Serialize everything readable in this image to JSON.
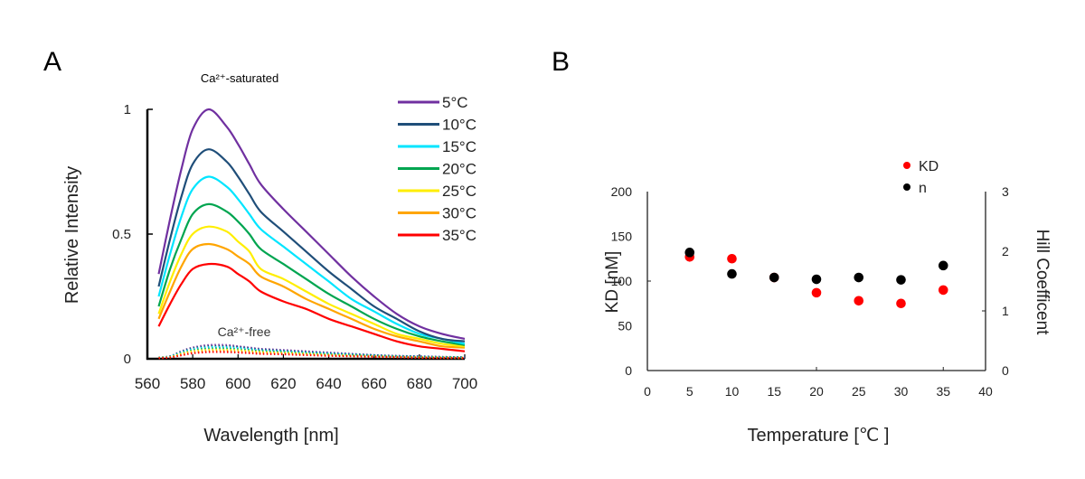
{
  "chart_data": [
    {
      "panel_label": "A",
      "type": "line",
      "title": "Ca²⁺-saturated",
      "annotation": "Ca²⁺-free",
      "xlabel": "Wavelength [nm]",
      "ylabel": "Relative Intensity",
      "xlim": [
        560,
        700
      ],
      "ylim": [
        0,
        1
      ],
      "xticks": [
        "560",
        "580",
        "600",
        "620",
        "640",
        "660",
        "680",
        "700"
      ],
      "yticks": [
        "0",
        "0.5",
        "1"
      ],
      "ytick_values": [
        0,
        0.5,
        1
      ],
      "grid": false,
      "legend_position": "top-right",
      "x": [
        565,
        570,
        575,
        580,
        587,
        595,
        600,
        605,
        610,
        620,
        630,
        640,
        650,
        660,
        670,
        680,
        690,
        700
      ],
      "series": [
        {
          "name": "5°C",
          "color": "#7030a0",
          "style": "solid",
          "values": [
            0.34,
            0.56,
            0.76,
            0.92,
            1.0,
            0.93,
            0.86,
            0.78,
            0.7,
            0.6,
            0.51,
            0.42,
            0.33,
            0.25,
            0.18,
            0.13,
            0.1,
            0.08
          ]
        },
        {
          "name": "10°C",
          "color": "#1f4e79",
          "style": "solid",
          "values": [
            0.29,
            0.48,
            0.65,
            0.78,
            0.84,
            0.79,
            0.73,
            0.66,
            0.59,
            0.51,
            0.43,
            0.35,
            0.28,
            0.21,
            0.16,
            0.11,
            0.08,
            0.07
          ]
        },
        {
          "name": "15°C",
          "color": "#00e5ff",
          "style": "solid",
          "values": [
            0.25,
            0.42,
            0.57,
            0.68,
            0.73,
            0.69,
            0.64,
            0.58,
            0.52,
            0.45,
            0.38,
            0.31,
            0.24,
            0.19,
            0.14,
            0.1,
            0.08,
            0.06
          ]
        },
        {
          "name": "20°C",
          "color": "#00a550",
          "style": "solid",
          "values": [
            0.21,
            0.36,
            0.48,
            0.58,
            0.62,
            0.59,
            0.55,
            0.5,
            0.44,
            0.38,
            0.32,
            0.26,
            0.21,
            0.16,
            0.12,
            0.09,
            0.07,
            0.055
          ]
        },
        {
          "name": "25°C",
          "color": "#ffee00",
          "style": "solid",
          "values": [
            0.18,
            0.31,
            0.42,
            0.5,
            0.53,
            0.51,
            0.47,
            0.43,
            0.36,
            0.32,
            0.27,
            0.22,
            0.18,
            0.14,
            0.1,
            0.08,
            0.06,
            0.05
          ]
        },
        {
          "name": "30°C",
          "color": "#ffa500",
          "style": "solid",
          "values": [
            0.16,
            0.27,
            0.37,
            0.44,
            0.46,
            0.44,
            0.41,
            0.38,
            0.33,
            0.29,
            0.24,
            0.2,
            0.16,
            0.12,
            0.09,
            0.07,
            0.05,
            0.045
          ]
        },
        {
          "name": "35°C",
          "color": "#ff0000",
          "style": "solid",
          "values": [
            0.13,
            0.22,
            0.3,
            0.36,
            0.38,
            0.37,
            0.34,
            0.31,
            0.27,
            0.23,
            0.2,
            0.16,
            0.13,
            0.1,
            0.07,
            0.05,
            0.04,
            0.03
          ]
        }
      ],
      "ca_free_series": [
        {
          "name": "5°C",
          "color": "#7030a0",
          "style": "dotted",
          "values": [
            0.005,
            0.01,
            0.03,
            0.045,
            0.055,
            0.055,
            0.05,
            0.045,
            0.04,
            0.035,
            0.03,
            0.025,
            0.02,
            0.015,
            0.012,
            0.01,
            0.008,
            0.006
          ]
        },
        {
          "name": "10°C",
          "color": "#1f4e79",
          "style": "dotted",
          "values": [
            0.005,
            0.01,
            0.028,
            0.042,
            0.05,
            0.05,
            0.047,
            0.042,
            0.037,
            0.032,
            0.027,
            0.022,
            0.018,
            0.014,
            0.011,
            0.009,
            0.007,
            0.006
          ]
        },
        {
          "name": "15°C",
          "color": "#00e5ff",
          "style": "dotted",
          "values": [
            0.005,
            0.009,
            0.025,
            0.038,
            0.046,
            0.046,
            0.043,
            0.039,
            0.034,
            0.03,
            0.025,
            0.021,
            0.017,
            0.013,
            0.01,
            0.008,
            0.007,
            0.005
          ]
        },
        {
          "name": "20°C",
          "color": "#00a550",
          "style": "dotted",
          "values": [
            0.004,
            0.008,
            0.022,
            0.034,
            0.041,
            0.041,
            0.038,
            0.035,
            0.031,
            0.027,
            0.022,
            0.018,
            0.015,
            0.012,
            0.009,
            0.007,
            0.006,
            0.005
          ]
        },
        {
          "name": "25°C",
          "color": "#ffee00",
          "style": "dotted",
          "values": [
            0.004,
            0.007,
            0.02,
            0.03,
            0.036,
            0.036,
            0.034,
            0.031,
            0.027,
            0.024,
            0.02,
            0.016,
            0.013,
            0.01,
            0.008,
            0.006,
            0.005,
            0.004
          ]
        },
        {
          "name": "30°C",
          "color": "#ffa500",
          "style": "dotted",
          "values": [
            0.003,
            0.006,
            0.017,
            0.026,
            0.031,
            0.031,
            0.029,
            0.027,
            0.024,
            0.021,
            0.017,
            0.014,
            0.011,
            0.009,
            0.007,
            0.005,
            0.004,
            0.003
          ]
        },
        {
          "name": "35°C",
          "color": "#ff0000",
          "style": "dotted",
          "values": [
            0.003,
            0.005,
            0.014,
            0.022,
            0.027,
            0.027,
            0.025,
            0.023,
            0.02,
            0.018,
            0.015,
            0.012,
            0.01,
            0.008,
            0.006,
            0.004,
            0.003,
            0.003
          ]
        }
      ]
    },
    {
      "panel_label": "B",
      "type": "scatter",
      "title": "",
      "xlabel": "Temperature [℃ ]",
      "ylabel": "KD [nM]",
      "y2label": "Hill Coefficent",
      "xlim": [
        0,
        40
      ],
      "ylim": [
        0,
        200
      ],
      "y2lim": [
        0,
        3
      ],
      "xticks": [
        "0",
        "5",
        "10",
        "15",
        "20",
        "25",
        "30",
        "35",
        "40"
      ],
      "yticks": [
        "0",
        "50",
        "100",
        "150",
        "200"
      ],
      "y2ticks": [
        "0",
        "1",
        "2",
        "3"
      ],
      "grid": false,
      "legend_position": "top-right",
      "x": [
        5,
        10,
        15,
        20,
        25,
        30,
        35
      ],
      "series": [
        {
          "name": "KD",
          "axis": "left",
          "color": "#ff0000",
          "values": [
            127,
            125,
            104,
            87,
            78,
            75,
            90
          ]
        },
        {
          "name": "n",
          "axis": "right",
          "color": "#000000",
          "values": [
            1.98,
            1.62,
            1.56,
            1.53,
            1.56,
            1.52,
            1.76
          ]
        }
      ]
    }
  ]
}
